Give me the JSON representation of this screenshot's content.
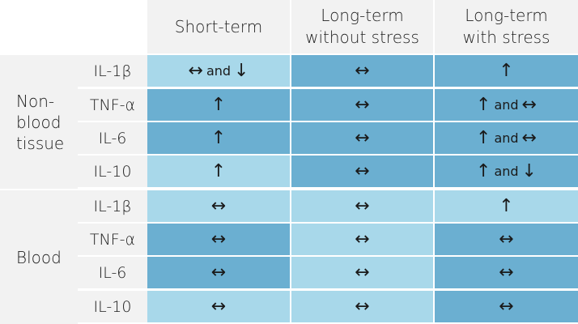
{
  "columns": [
    {
      "line1": "Short-term",
      "line2": ""
    },
    {
      "line1": "Long-term",
      "line2": "without stress"
    },
    {
      "line1": "Long-term",
      "line2": "with stress"
    }
  ],
  "groups": [
    {
      "label_lines": [
        "Non-",
        "blood",
        "tissue"
      ],
      "rows": [
        {
          "label": "IL-1β",
          "cells": [
            [
              "↔",
              "and",
              "↓"
            ],
            [
              "↔"
            ],
            [
              "↑"
            ]
          ]
        },
        {
          "label": "TNF-α",
          "cells": [
            [
              "↑"
            ],
            [
              "↔"
            ],
            [
              "↑",
              "and",
              "↔"
            ]
          ]
        },
        {
          "label": "IL-6",
          "cells": [
            [
              "↑"
            ],
            [
              "↔"
            ],
            [
              "↑",
              "and",
              "↔"
            ]
          ]
        },
        {
          "label": "IL-10",
          "cells": [
            [
              "↑"
            ],
            [
              "↔"
            ],
            [
              "↑",
              "and",
              "↓"
            ]
          ]
        }
      ]
    },
    {
      "label_lines": [
        "Blood"
      ],
      "rows": [
        {
          "label": "IL-1β",
          "cells": [
            [
              "↔"
            ],
            [
              "↔"
            ],
            [
              "↑"
            ]
          ]
        },
        {
          "label": "TNF-α",
          "cells": [
            [
              "↔"
            ],
            [
              "↔"
            ],
            [
              "↔"
            ]
          ]
        },
        {
          "label": "IL-6",
          "cells": [
            [
              "↔"
            ],
            [
              "↔"
            ],
            [
              "↔"
            ]
          ]
        },
        {
          "label": "IL-10",
          "cells": [
            [
              "↔"
            ],
            [
              "↔"
            ],
            [
              "↔"
            ]
          ]
        }
      ]
    }
  ],
  "colors": {
    "header_bg": "#f2f2f2",
    "cell_light": "#a8d8ea",
    "cell_dark": "#6bafd1"
  }
}
